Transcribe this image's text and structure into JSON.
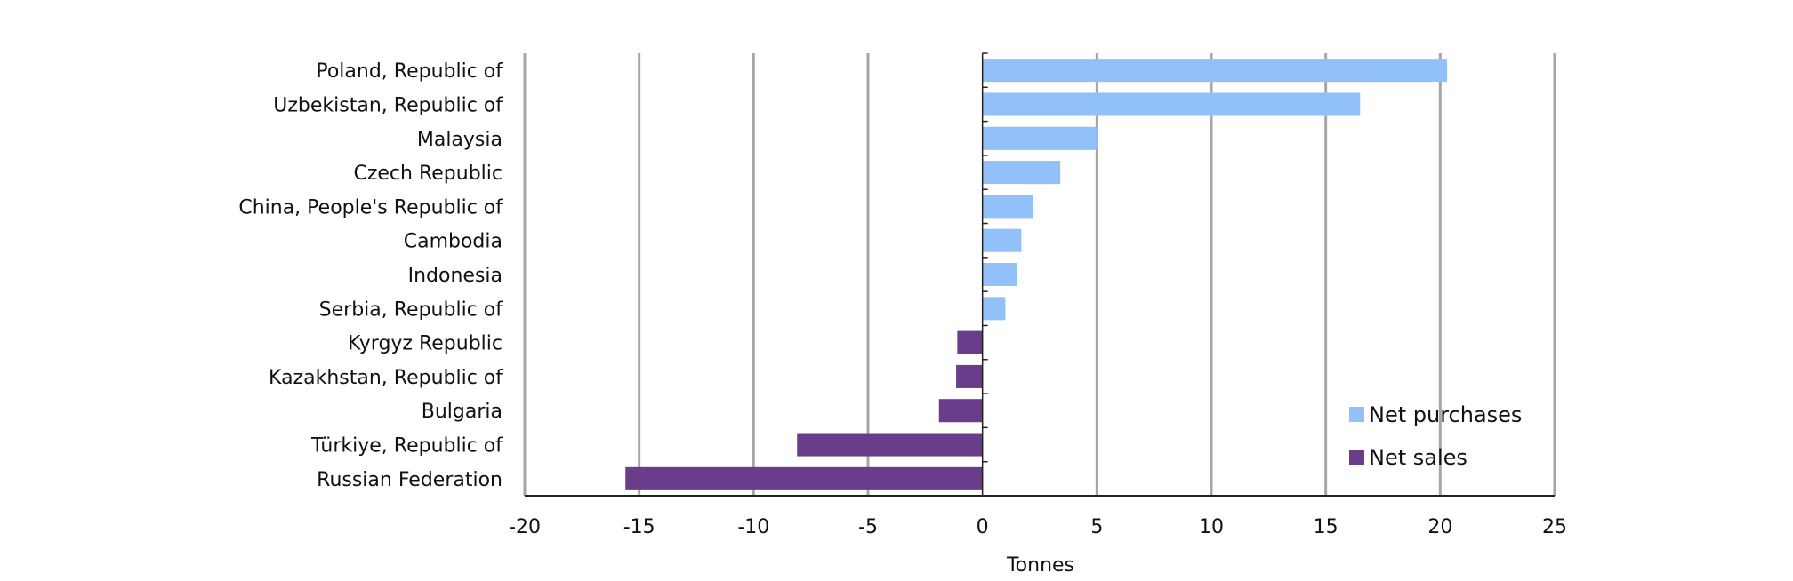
{
  "chart_data": {
    "type": "bar",
    "orientation": "horizontal",
    "title": "",
    "xlabel": "Tonnes",
    "ylabel": "",
    "xlim": [
      -20,
      25
    ],
    "xticks": [
      -20,
      -15,
      -10,
      -5,
      0,
      5,
      10,
      15,
      20,
      25
    ],
    "grid": "vertical",
    "legend_position": "bottom-right",
    "categories": [
      "Poland, Republic of",
      "Uzbekistan, Republic of",
      "Malaysia",
      "Czech Republic",
      "China, People's Republic of",
      "Cambodia",
      "Indonesia",
      "Serbia, Republic of",
      "Kyrgyz Republic",
      "Kazakhstan, Republic of",
      "Bulgaria",
      "Türkiye, Republic of",
      "Russian Federation"
    ],
    "values": [
      20.3,
      16.5,
      5.0,
      3.4,
      2.2,
      1.7,
      1.5,
      1.0,
      -1.1,
      -1.15,
      -1.9,
      -8.1,
      -15.6
    ],
    "series": [
      {
        "name": "Net purchases",
        "color": "#92c1f9",
        "applies_to": "positive"
      },
      {
        "name": "Net sales",
        "color": "#6a3d8a",
        "applies_to": "negative"
      }
    ],
    "colors": {
      "grid": "#a6a6a6",
      "axis": "#222222"
    }
  }
}
